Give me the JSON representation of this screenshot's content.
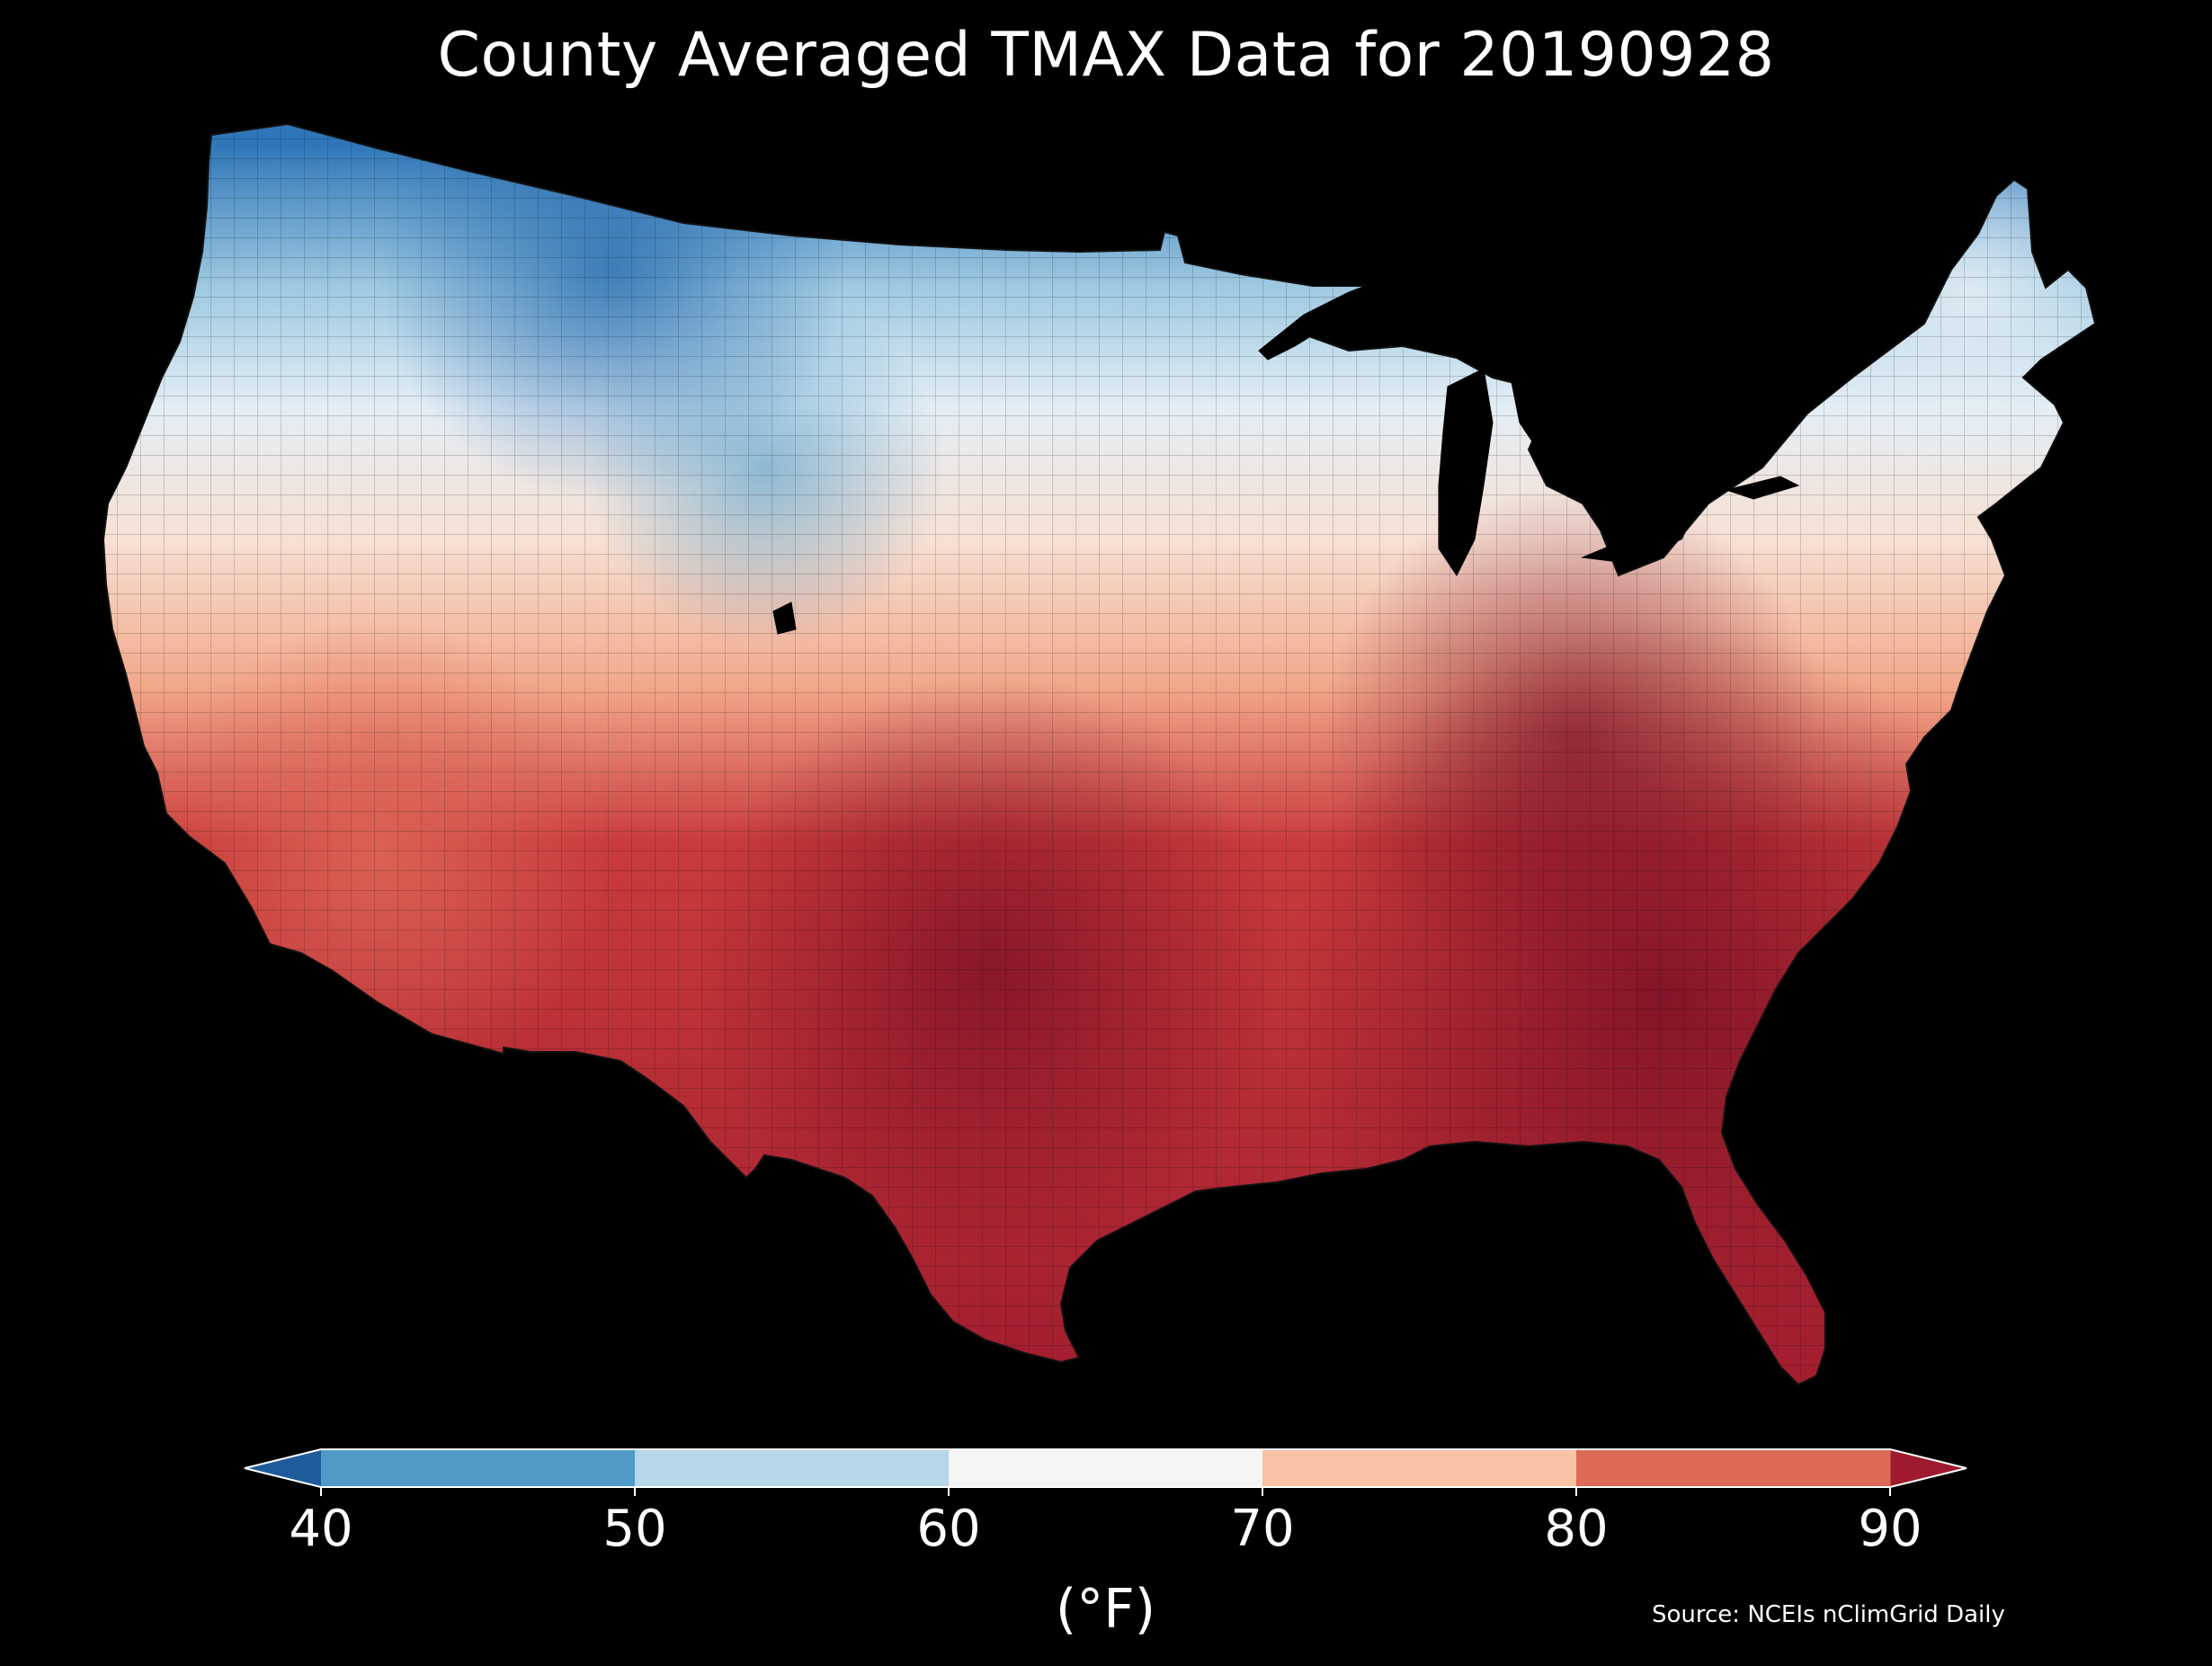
{
  "title": "County Averaged TMAX Data for 20190928",
  "source": "Source: NCEIs nClimGrid Daily",
  "colorbar": {
    "ticks": [
      "40",
      "50",
      "60",
      "70",
      "80",
      "90"
    ],
    "unit_label": "(°F)",
    "segments": [
      {
        "from": 40,
        "to": 50,
        "color": "#4f9ac6"
      },
      {
        "from": 50,
        "to": 60,
        "color": "#b5d7e9"
      },
      {
        "from": 60,
        "to": 70,
        "color": "#f5f5f5"
      },
      {
        "from": 70,
        "to": 80,
        "color": "#f8c2a4"
      },
      {
        "from": 80,
        "to": 90,
        "color": "#dd6957"
      }
    ],
    "under_color": "#1d5b9b",
    "over_color": "#9e1a2e"
  },
  "map": {
    "region": "contiguous-united-states",
    "background": "#000000",
    "lake_color": "#000000",
    "gradient_stops": [
      {
        "color": "#2f76b8"
      },
      {
        "color": "#9fcae1"
      },
      {
        "color": "#e4eef5"
      },
      {
        "color": "#f7e0d3"
      },
      {
        "color": "#f2a88a"
      },
      {
        "color": "#c93b3b"
      },
      {
        "color": "#a31f2f"
      }
    ]
  }
}
